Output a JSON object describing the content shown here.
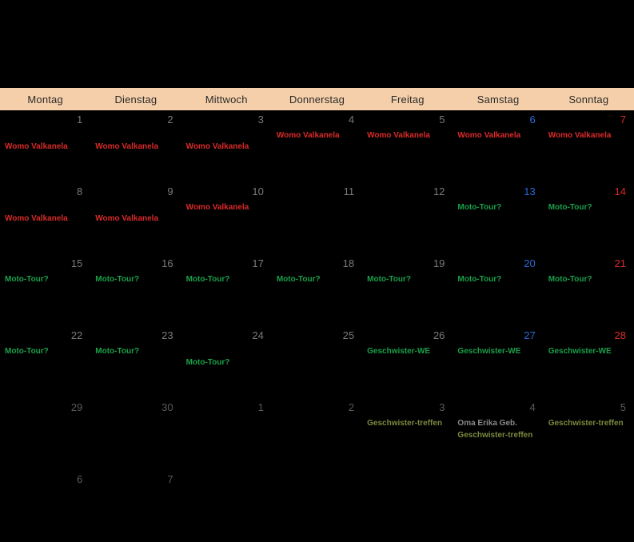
{
  "colors": {
    "background": "#000000",
    "header_bg": "#f5cfa9",
    "header_text": "#2b2b2b",
    "day_default": "#7a7a7a",
    "day_saturday": "#2a6bd4",
    "day_sunday": "#d92a2a",
    "day_outside": "#5a5a5a",
    "event_red": "#d92a2a",
    "event_green": "#1aa04a",
    "event_olive": "#7a8a3e",
    "event_gray": "#8a8a8a"
  },
  "weekdays": [
    "Montag",
    "Dienstag",
    "Mittwoch",
    "Donnerstag",
    "Freitag",
    "Samstag",
    "Sonntag"
  ],
  "cells": [
    {
      "n": "1",
      "c": "d",
      "ev": [
        {
          "t": "Womo Valkanela",
          "k": "r",
          "off": 1
        }
      ]
    },
    {
      "n": "2",
      "c": "d",
      "ev": [
        {
          "t": "Womo Valkanela",
          "k": "r",
          "off": 1
        }
      ]
    },
    {
      "n": "3",
      "c": "d",
      "ev": [
        {
          "t": "Womo Valkanela",
          "k": "r",
          "off": 1
        }
      ]
    },
    {
      "n": "4",
      "c": "d",
      "ev": [
        {
          "t": "Womo Valkanela",
          "k": "r"
        }
      ]
    },
    {
      "n": "5",
      "c": "d",
      "ev": [
        {
          "t": "Womo Valkanela",
          "k": "r"
        }
      ]
    },
    {
      "n": "6",
      "c": "sa",
      "ev": [
        {
          "t": "Womo Valkanela",
          "k": "r"
        }
      ]
    },
    {
      "n": "7",
      "c": "su",
      "ev": [
        {
          "t": "Womo Valkanela",
          "k": "r"
        }
      ]
    },
    {
      "n": "8",
      "c": "d",
      "ev": [
        {
          "t": "Womo Valkanela",
          "k": "r",
          "off": 1
        }
      ]
    },
    {
      "n": "9",
      "c": "d",
      "ev": [
        {
          "t": "Womo Valkanela",
          "k": "r",
          "off": 1
        }
      ]
    },
    {
      "n": "10",
      "c": "d",
      "ev": [
        {
          "t": "Womo Valkanela",
          "k": "r"
        }
      ]
    },
    {
      "n": "11",
      "c": "d",
      "ev": []
    },
    {
      "n": "12",
      "c": "d",
      "ev": []
    },
    {
      "n": "13",
      "c": "sa",
      "ev": [
        {
          "t": "Moto-Tour?",
          "k": "g"
        }
      ]
    },
    {
      "n": "14",
      "c": "su",
      "ev": [
        {
          "t": "Moto-Tour?",
          "k": "g"
        }
      ]
    },
    {
      "n": "15",
      "c": "d",
      "ev": [
        {
          "t": "Moto-Tour?",
          "k": "g"
        }
      ]
    },
    {
      "n": "16",
      "c": "d",
      "ev": [
        {
          "t": "Moto-Tour?",
          "k": "g"
        }
      ]
    },
    {
      "n": "17",
      "c": "d",
      "ev": [
        {
          "t": "Moto-Tour?",
          "k": "g"
        }
      ]
    },
    {
      "n": "18",
      "c": "d",
      "ev": [
        {
          "t": "Moto-Tour?",
          "k": "g"
        }
      ]
    },
    {
      "n": "19",
      "c": "d",
      "ev": [
        {
          "t": "Moto-Tour?",
          "k": "g"
        }
      ]
    },
    {
      "n": "20",
      "c": "sa",
      "ev": [
        {
          "t": "Moto-Tour?",
          "k": "g"
        }
      ]
    },
    {
      "n": "21",
      "c": "su",
      "ev": [
        {
          "t": "Moto-Tour?",
          "k": "g"
        }
      ]
    },
    {
      "n": "22",
      "c": "d",
      "ev": [
        {
          "t": "Moto-Tour?",
          "k": "g"
        }
      ]
    },
    {
      "n": "23",
      "c": "d",
      "ev": [
        {
          "t": "Moto-Tour?",
          "k": "g"
        }
      ]
    },
    {
      "n": "24",
      "c": "d",
      "ev": [
        {
          "t": "Moto-Tour?",
          "k": "g",
          "off": 1
        }
      ]
    },
    {
      "n": "25",
      "c": "d",
      "ev": []
    },
    {
      "n": "26",
      "c": "d",
      "ev": [
        {
          "t": "Geschwister-WE",
          "k": "g"
        }
      ]
    },
    {
      "n": "27",
      "c": "sa",
      "ev": [
        {
          "t": "Geschwister-WE",
          "k": "g"
        }
      ]
    },
    {
      "n": "28",
      "c": "su",
      "ev": [
        {
          "t": "Geschwister-WE",
          "k": "g"
        }
      ]
    },
    {
      "n": "29",
      "c": "o",
      "ev": []
    },
    {
      "n": "30",
      "c": "o",
      "ev": []
    },
    {
      "n": "1",
      "c": "o",
      "ev": []
    },
    {
      "n": "2",
      "c": "o",
      "ev": []
    },
    {
      "n": "3",
      "c": "o",
      "ev": [
        {
          "t": "Geschwister-treffen",
          "k": "ol"
        }
      ]
    },
    {
      "n": "4",
      "c": "o",
      "ev": [
        {
          "t": "Oma Erika Geb.",
          "k": "gy"
        },
        {
          "t": "Geschwister-treffen",
          "k": "ol"
        }
      ]
    },
    {
      "n": "5",
      "c": "o",
      "ev": [
        {
          "t": "Geschwister-treffen",
          "k": "ol"
        }
      ]
    },
    {
      "n": "6",
      "c": "o",
      "ev": []
    },
    {
      "n": "7",
      "c": "o",
      "ev": []
    }
  ]
}
